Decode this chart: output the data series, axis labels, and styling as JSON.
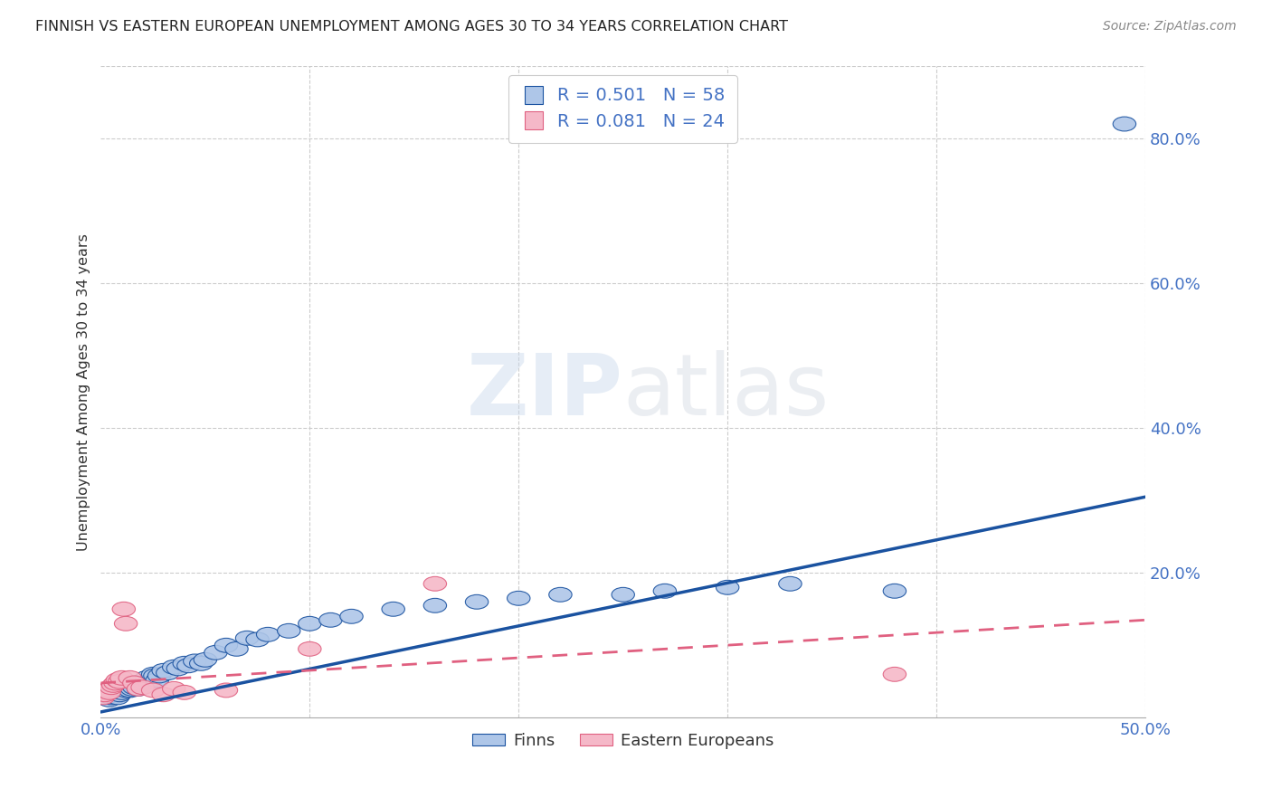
{
  "title": "FINNISH VS EASTERN EUROPEAN UNEMPLOYMENT AMONG AGES 30 TO 34 YEARS CORRELATION CHART",
  "source": "Source: ZipAtlas.com",
  "ylabel": "Unemployment Among Ages 30 to 34 years",
  "xlim": [
    0.0,
    0.5
  ],
  "ylim": [
    0.0,
    0.9
  ],
  "finns_R": 0.501,
  "finns_N": 58,
  "eastern_R": 0.081,
  "eastern_N": 24,
  "finns_color": "#aec6e8",
  "eastern_color": "#f5b8c8",
  "trendline_finns_color": "#1a52a0",
  "trendline_eastern_color": "#e06080",
  "finns_x": [
    0.002,
    0.003,
    0.004,
    0.005,
    0.005,
    0.006,
    0.007,
    0.008,
    0.008,
    0.009,
    0.01,
    0.011,
    0.012,
    0.013,
    0.014,
    0.015,
    0.015,
    0.016,
    0.017,
    0.018,
    0.02,
    0.021,
    0.022,
    0.023,
    0.025,
    0.026,
    0.027,
    0.028,
    0.03,
    0.032,
    0.035,
    0.037,
    0.04,
    0.042,
    0.045,
    0.048,
    0.05,
    0.055,
    0.06,
    0.065,
    0.07,
    0.075,
    0.08,
    0.09,
    0.1,
    0.11,
    0.12,
    0.14,
    0.16,
    0.18,
    0.2,
    0.22,
    0.25,
    0.27,
    0.3,
    0.33,
    0.38,
    0.49
  ],
  "finns_y": [
    0.03,
    0.028,
    0.025,
    0.032,
    0.028,
    0.03,
    0.035,
    0.03,
    0.028,
    0.032,
    0.035,
    0.04,
    0.038,
    0.042,
    0.038,
    0.045,
    0.04,
    0.042,
    0.048,
    0.04,
    0.05,
    0.048,
    0.055,
    0.05,
    0.06,
    0.058,
    0.052,
    0.058,
    0.065,
    0.062,
    0.07,
    0.068,
    0.075,
    0.072,
    0.078,
    0.075,
    0.08,
    0.09,
    0.1,
    0.095,
    0.11,
    0.108,
    0.115,
    0.12,
    0.13,
    0.135,
    0.14,
    0.15,
    0.155,
    0.16,
    0.165,
    0.17,
    0.17,
    0.175,
    0.18,
    0.185,
    0.175,
    0.82
  ],
  "eastern_x": [
    0.001,
    0.002,
    0.003,
    0.004,
    0.005,
    0.006,
    0.007,
    0.008,
    0.009,
    0.01,
    0.011,
    0.012,
    0.014,
    0.016,
    0.018,
    0.02,
    0.025,
    0.03,
    0.035,
    0.04,
    0.06,
    0.1,
    0.16,
    0.38
  ],
  "eastern_y": [
    0.028,
    0.032,
    0.038,
    0.035,
    0.042,
    0.045,
    0.048,
    0.052,
    0.05,
    0.055,
    0.15,
    0.13,
    0.055,
    0.048,
    0.04,
    0.042,
    0.038,
    0.032,
    0.04,
    0.035,
    0.038,
    0.095,
    0.185,
    0.06
  ],
  "background_color": "#ffffff",
  "grid_color": "#cccccc",
  "legend_finn_label": "Finns",
  "legend_eastern_label": "Eastern Europeans",
  "finns_trend_x0": 0.0,
  "finns_trend_y0": 0.008,
  "finns_trend_x1": 0.5,
  "finns_trend_y1": 0.305,
  "eastern_trend_x0": 0.0,
  "eastern_trend_y0": 0.048,
  "eastern_trend_x1": 0.5,
  "eastern_trend_y1": 0.135
}
